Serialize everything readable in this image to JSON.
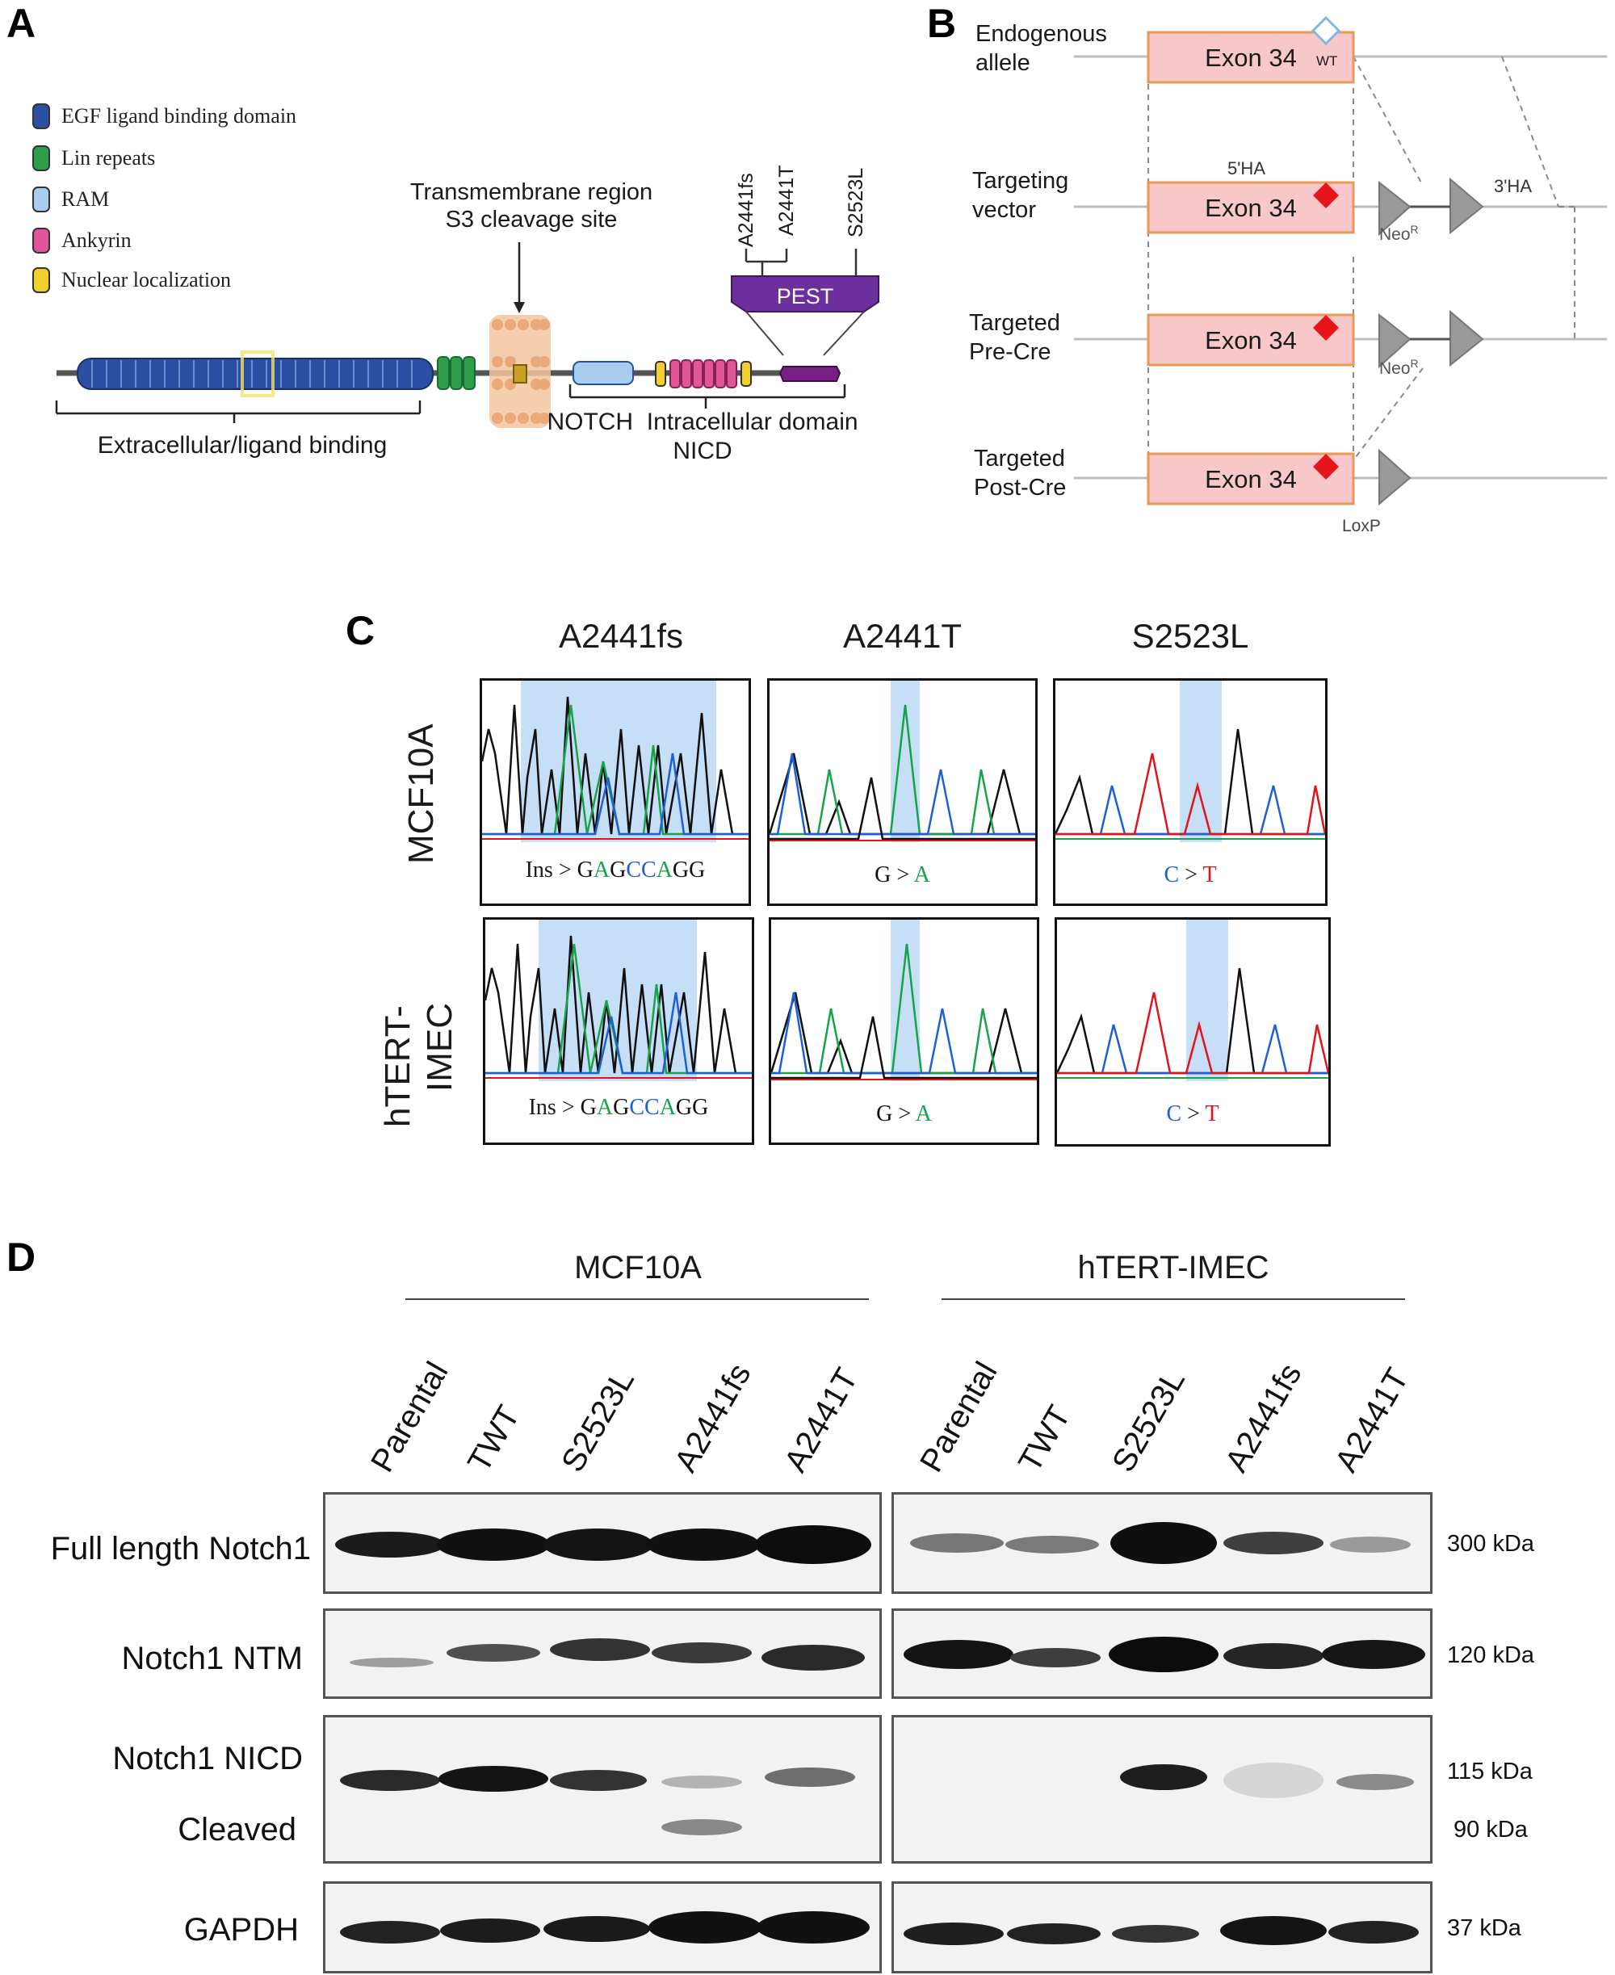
{
  "panels": {
    "a": {
      "letter": "A",
      "legend": [
        {
          "label": "EGF ligand binding domain",
          "color": "#2a4fa3"
        },
        {
          "label": "Lin repeats",
          "color": "#2e9e4a"
        },
        {
          "label": "RAM",
          "color": "#a9cdee"
        },
        {
          "label": "Ankyrin",
          "color": "#e0569a"
        },
        {
          "label": "Nuclear localization",
          "color": "#f2d02c"
        }
      ],
      "tm_label_1": "Transmembrane region",
      "tm_label_2": "S3 cleavage site",
      "mutations": [
        "A2441fs",
        "A2441T",
        "S2523L"
      ],
      "pest_label": "PEST",
      "extracellular_label": "Extracellular/ligand binding",
      "nicd_label_1": "NOTCH  Intracellular domain",
      "nicd_label_2": "NICD"
    },
    "b": {
      "letter": "B",
      "rows": [
        {
          "label_1": "Endogenous",
          "label_2": "allele"
        },
        {
          "label_1": "Targeting",
          "label_2": "vector"
        },
        {
          "label_1": "Targeted",
          "label_2": "Pre-Cre"
        },
        {
          "label_1": "Targeted",
          "label_2": "Post-Cre"
        }
      ],
      "exon_label": "Exon 34",
      "wt_label": "WT",
      "ha5_label": "5'HA",
      "ha3_label": "3'HA",
      "neo_label": "Neo",
      "neo_sup": "R",
      "loxp_label": "LoxP",
      "wt_diamond_color": "#7fb8e6",
      "mut_diamond_color": "#e8141c",
      "exon_fill": "#f8c8c8",
      "exon_border": "#e59a5a"
    },
    "c": {
      "letter": "C",
      "columns": [
        "A2441fs",
        "A2441T",
        "S2523L"
      ],
      "rows": [
        {
          "label_1": "MCF10A",
          "label_2": ""
        },
        {
          "label_1": "hTERT-",
          "label_2": "IMEC"
        }
      ],
      "captions": {
        "col1_prefix": "Ins > ",
        "col1_bases": [
          "G",
          "A",
          "G",
          "C",
          "C",
          "A",
          "G",
          "G"
        ],
        "col2_ref": "G",
        "col2_sep": " > ",
        "col2_alt": "A",
        "col3_ref": "C",
        "col3_sep": " > ",
        "col3_alt": "T"
      },
      "base_colors": {
        "G": "#111111",
        "A": "#17a34a",
        "C": "#1f5fd6",
        "T": "#e0141c"
      }
    },
    "d": {
      "letter": "D",
      "groups": [
        "MCF10A",
        "hTERT-IMEC"
      ],
      "lanes": [
        "Parental",
        "TWT",
        "S2523L",
        "A2441fs",
        "A2441T"
      ],
      "row_labels": {
        "full_length": "Full length Notch1",
        "ntm": "Notch1 NTM",
        "nicd": "Notch1 NICD",
        "cleaved": "Cleaved",
        "gapdh": "GAPDH"
      },
      "kda": {
        "full_length": "300 kDa",
        "ntm": "120 kDa",
        "nicd": "115 kDa",
        "cleaved": "90 kDa",
        "gapdh": "37 kDa"
      }
    }
  }
}
